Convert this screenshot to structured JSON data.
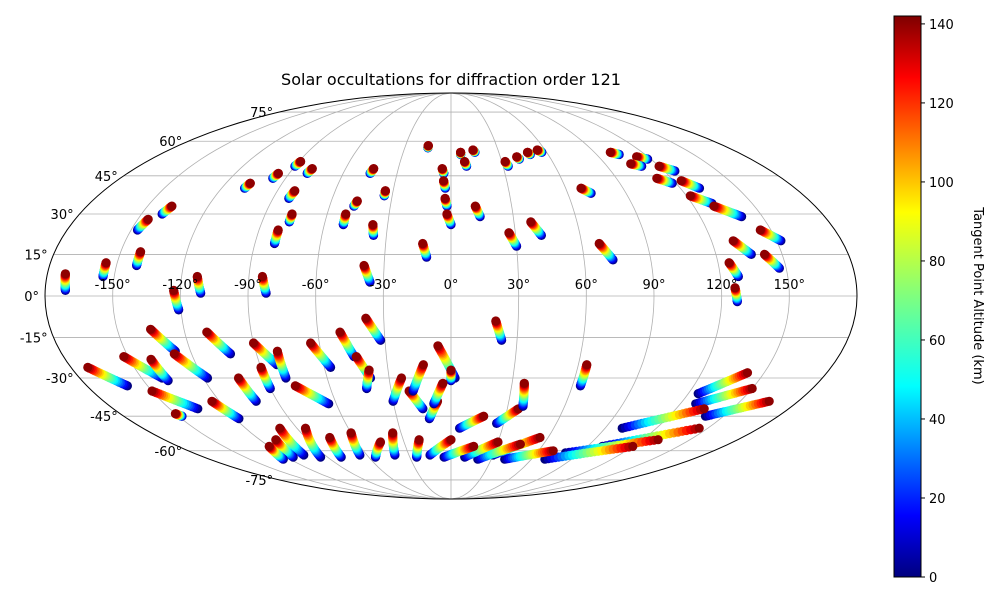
{
  "chart_data": {
    "type": "scatter",
    "projection": "mollweide",
    "title": "Solar occultations for diffraction order 121",
    "grid": true,
    "lon_ticks": [
      -150,
      -120,
      -90,
      -60,
      -30,
      0,
      30,
      60,
      90,
      120,
      150
    ],
    "lon_labels": [
      "-150°",
      "-120°",
      "-90°",
      "-60°",
      "-30°",
      "0°",
      "30°",
      "60°",
      "90°",
      "120°",
      "150°"
    ],
    "lat_ticks": [
      -75,
      -60,
      -45,
      -30,
      -15,
      0,
      15,
      30,
      45,
      60,
      75
    ],
    "lat_labels": [
      "-75°",
      "-60°",
      "-45°",
      "-30°",
      "-15°",
      "0°",
      "15°",
      "30°",
      "45°",
      "60°",
      "75°"
    ],
    "colorbar": {
      "label": "Tangent Point Altitude (km)",
      "colormap": "jet",
      "range": [
        0,
        142
      ],
      "ticks": [
        0,
        20,
        40,
        60,
        80,
        100,
        120,
        140
      ],
      "tick_labels": [
        "0",
        "20",
        "40",
        "60",
        "80",
        "100",
        "120",
        "140"
      ]
    },
    "tracks": [
      {
        "lon_top": -172,
        "lat_top": 8,
        "lon_bottom": -171,
        "lat_bottom": 2
      },
      {
        "lon_top": -155,
        "lat_top": 12,
        "lon_bottom": -155,
        "lat_bottom": 7
      },
      {
        "lon_top": -145,
        "lat_top": 28,
        "lon_bottom": -147,
        "lat_bottom": 24
      },
      {
        "lon_top": -138,
        "lat_top": 33,
        "lon_bottom": -140,
        "lat_bottom": 30
      },
      {
        "lon_top": -141,
        "lat_top": 16,
        "lon_bottom": -141,
        "lat_bottom": 11
      },
      {
        "lon_top": -123,
        "lat_top": 2,
        "lon_bottom": -121,
        "lat_bottom": -5
      },
      {
        "lon_top": -113,
        "lat_top": 7,
        "lon_bottom": -111,
        "lat_bottom": 1
      },
      {
        "lon_top": -107,
        "lat_top": 42,
        "lon_bottom": -108,
        "lat_bottom": 40
      },
      {
        "lon_top": -96,
        "lat_top": 46,
        "lon_bottom": -97,
        "lat_bottom": 44
      },
      {
        "lon_top": -89,
        "lat_top": 51,
        "lon_bottom": -90,
        "lat_bottom": 49
      },
      {
        "lon_top": -79,
        "lat_top": 48,
        "lon_bottom": -80,
        "lat_bottom": 46
      },
      {
        "lon_top": -81,
        "lat_top": 39,
        "lon_bottom": -82,
        "lat_bottom": 36
      },
      {
        "lon_top": -77,
        "lat_top": 30,
        "lon_bottom": -77,
        "lat_bottom": 27
      },
      {
        "lon_top": -81,
        "lat_top": 24,
        "lon_bottom": -81,
        "lat_bottom": 19
      },
      {
        "lon_top": -84,
        "lat_top": 7,
        "lon_bottom": -82,
        "lat_bottom": 1
      },
      {
        "lon_top": -44,
        "lat_top": 48,
        "lon_bottom": -45,
        "lat_bottom": 46
      },
      {
        "lon_top": -47,
        "lat_top": 35,
        "lon_bottom": -48,
        "lat_bottom": 33
      },
      {
        "lon_top": -51,
        "lat_top": 30,
        "lon_bottom": -51,
        "lat_bottom": 26
      },
      {
        "lon_top": -34,
        "lat_top": 39,
        "lon_bottom": -34,
        "lat_bottom": 37
      },
      {
        "lon_top": -37,
        "lat_top": 26,
        "lon_bottom": -36,
        "lat_bottom": 22
      },
      {
        "lon_top": -39,
        "lat_top": 11,
        "lon_bottom": -36,
        "lat_bottom": 5
      },
      {
        "lon_top": -13,
        "lat_top": 19,
        "lon_bottom": -11,
        "lat_bottom": 14
      },
      {
        "lon_top": -15,
        "lat_top": 58,
        "lon_bottom": -15,
        "lat_bottom": 57
      },
      {
        "lon_top": -5,
        "lat_top": 48,
        "lon_bottom": -4,
        "lat_bottom": 46
      },
      {
        "lon_top": -4,
        "lat_top": 43,
        "lon_bottom": -3,
        "lat_bottom": 40
      },
      {
        "lon_top": -3,
        "lat_top": 36,
        "lon_bottom": -2,
        "lat_bottom": 33
      },
      {
        "lon_top": -2,
        "lat_top": 30,
        "lon_bottom": 0,
        "lat_bottom": 26
      },
      {
        "lon_top": 6,
        "lat_top": 55,
        "lon_bottom": 6,
        "lat_bottom": 54
      },
      {
        "lon_top": 8,
        "lat_top": 51,
        "lon_bottom": 9,
        "lat_bottom": 49
      },
      {
        "lon_top": 14,
        "lat_top": 56,
        "lon_bottom": 15,
        "lat_bottom": 55
      },
      {
        "lon_top": 12,
        "lat_top": 33,
        "lon_bottom": 14,
        "lat_bottom": 29
      },
      {
        "lon_top": 32,
        "lat_top": 51,
        "lon_bottom": 33,
        "lat_bottom": 49
      },
      {
        "lon_top": 40,
        "lat_top": 53,
        "lon_bottom": 41,
        "lat_bottom": 52
      },
      {
        "lon_top": 48,
        "lat_top": 55,
        "lon_bottom": 49,
        "lat_bottom": 54
      },
      {
        "lon_top": 55,
        "lat_top": 56,
        "lon_bottom": 57,
        "lat_bottom": 55
      },
      {
        "lon_top": 27,
        "lat_top": 23,
        "lon_bottom": 30,
        "lat_bottom": 18
      },
      {
        "lon_top": 38,
        "lat_top": 27,
        "lon_bottom": 42,
        "lat_bottom": 22
      },
      {
        "lon_top": 68,
        "lat_top": 40,
        "lon_bottom": 72,
        "lat_bottom": 38
      },
      {
        "lon_top": 68,
        "lat_top": 19,
        "lon_bottom": 73,
        "lat_bottom": 13
      },
      {
        "lon_top": 20,
        "lat_top": -9,
        "lon_bottom": 23,
        "lat_bottom": -16
      },
      {
        "lon_top": 100,
        "lat_top": 55,
        "lon_bottom": 104,
        "lat_bottom": 54
      },
      {
        "lon_top": 113,
        "lat_top": 53,
        "lon_bottom": 118,
        "lat_bottom": 52
      },
      {
        "lon_top": 105,
        "lat_top": 50,
        "lon_bottom": 110,
        "lat_bottom": 49
      },
      {
        "lon_top": 120,
        "lat_top": 49,
        "lon_bottom": 126,
        "lat_bottom": 47
      },
      {
        "lon_top": 112,
        "lat_top": 44,
        "lon_bottom": 118,
        "lat_bottom": 42
      },
      {
        "lon_top": 124,
        "lat_top": 43,
        "lon_bottom": 130,
        "lat_bottom": 40
      },
      {
        "lon_top": 122,
        "lat_top": 37,
        "lon_bottom": 130,
        "lat_bottom": 34
      },
      {
        "lon_top": 130,
        "lat_top": 33,
        "lon_bottom": 140,
        "lat_bottom": 29
      },
      {
        "lon_top": 145,
        "lat_top": 24,
        "lon_bottom": 152,
        "lat_bottom": 20
      },
      {
        "lon_top": 130,
        "lat_top": 20,
        "lon_bottom": 136,
        "lat_bottom": 15
      },
      {
        "lon_top": 142,
        "lat_top": 15,
        "lon_bottom": 147,
        "lat_bottom": 10
      },
      {
        "lon_top": 125,
        "lat_top": 12,
        "lon_bottom": 128,
        "lat_bottom": 7
      },
      {
        "lon_top": 126,
        "lat_top": 3,
        "lon_bottom": 127,
        "lat_bottom": -2
      },
      {
        "lon_top": -172,
        "lat_top": -26,
        "lon_bottom": -160,
        "lat_bottom": -33
      },
      {
        "lon_top": -152,
        "lat_top": -22,
        "lon_bottom": -140,
        "lat_bottom": -30
      },
      {
        "lon_top": -150,
        "lat_top": -35,
        "lon_bottom": -135,
        "lat_bottom": -42
      },
      {
        "lon_top": -140,
        "lat_top": -23,
        "lon_bottom": -138,
        "lat_bottom": -31
      },
      {
        "lon_top": -135,
        "lat_top": -12,
        "lon_bottom": -127,
        "lat_bottom": -20
      },
      {
        "lon_top": -128,
        "lat_top": -21,
        "lon_bottom": -118,
        "lat_bottom": -30
      },
      {
        "lon_top": -124,
        "lat_top": -39,
        "lon_bottom": -118,
        "lat_bottom": -46
      },
      {
        "lon_top": -110,
        "lat_top": -13,
        "lon_bottom": -102,
        "lat_bottom": -21
      },
      {
        "lon_top": -103,
        "lat_top": -30,
        "lon_bottom": -101,
        "lat_bottom": -39
      },
      {
        "lon_top": -90,
        "lat_top": -26,
        "lon_bottom": -90,
        "lat_bottom": -34
      },
      {
        "lon_top": -90,
        "lat_top": -17,
        "lon_bottom": -82,
        "lat_bottom": -25
      },
      {
        "lon_top": -80,
        "lat_top": -20,
        "lon_bottom": -80,
        "lat_bottom": -30
      },
      {
        "lon_top": -77,
        "lat_top": -33,
        "lon_bottom": -64,
        "lat_bottom": -40
      },
      {
        "lon_top": -64,
        "lat_top": -17,
        "lon_bottom": -57,
        "lat_bottom": -26
      },
      {
        "lon_top": -50,
        "lat_top": -13,
        "lon_bottom": -45,
        "lat_bottom": -22
      },
      {
        "lon_top": -44,
        "lat_top": -22,
        "lon_bottom": -39,
        "lat_bottom": -30
      },
      {
        "lon_top": -39,
        "lat_top": -27,
        "lon_bottom": -42,
        "lat_bottom": -34
      },
      {
        "lon_top": -38,
        "lat_top": -8,
        "lon_bottom": -32,
        "lat_bottom": -16
      },
      {
        "lon_top": -24,
        "lat_top": -30,
        "lon_bottom": -30,
        "lat_bottom": -39
      },
      {
        "lon_top": -21,
        "lat_top": -35,
        "lon_bottom": -15,
        "lat_bottom": -42
      },
      {
        "lon_top": -13,
        "lat_top": -25,
        "lon_bottom": -19,
        "lat_bottom": -35
      },
      {
        "lon_top": -7,
        "lat_top": -39,
        "lon_bottom": -12,
        "lat_bottom": -46
      },
      {
        "lon_top": -6,
        "lat_top": -18,
        "lon_bottom": 2,
        "lat_bottom": -30
      },
      {
        "lon_top": 0,
        "lat_top": -27,
        "lon_bottom": 0,
        "lat_bottom": -31
      },
      {
        "lon_top": -4,
        "lat_top": -32,
        "lon_bottom": -9,
        "lat_bottom": -40
      },
      {
        "lon_top": 18,
        "lat_top": -45,
        "lon_bottom": 5,
        "lat_bottom": -50
      },
      {
        "lon_top": 36,
        "lat_top": -42,
        "lon_bottom": 26,
        "lat_bottom": -48
      },
      {
        "lon_top": 36,
        "lat_top": -32,
        "lon_bottom": 38,
        "lat_bottom": -41
      },
      {
        "lon_top": 64,
        "lat_top": -25,
        "lon_bottom": 64,
        "lat_bottom": -33
      },
      {
        "lon_top": 142,
        "lat_top": -28,
        "lon_bottom": 125,
        "lat_bottom": -36
      },
      {
        "lon_top": 150,
        "lat_top": -34,
        "lon_bottom": 128,
        "lat_bottom": -40
      },
      {
        "lon_top": 165,
        "lat_top": -39,
        "lon_bottom": 140,
        "lat_bottom": -45
      },
      {
        "lon_top": 135,
        "lat_top": -42,
        "lon_bottom": 100,
        "lat_bottom": -50
      },
      {
        "lon_top": 145,
        "lat_top": -50,
        "lon_bottom": 100,
        "lat_bottom": -58
      },
      {
        "lon_top": 130,
        "lat_top": -55,
        "lon_bottom": 80,
        "lat_bottom": -61
      },
      {
        "lon_top": 120,
        "lat_top": -58,
        "lon_bottom": 70,
        "lat_bottom": -64
      },
      {
        "lon_top": 70,
        "lat_top": -60,
        "lon_bottom": 40,
        "lat_bottom": -64
      },
      {
        "lon_top": 55,
        "lat_top": -54,
        "lon_bottom": 30,
        "lat_bottom": -62
      },
      {
        "lon_top": 45,
        "lat_top": -57,
        "lon_bottom": 20,
        "lat_bottom": -64
      },
      {
        "lon_top": 30,
        "lat_top": -56,
        "lon_bottom": 10,
        "lat_bottom": -63
      },
      {
        "lon_top": 15,
        "lat_top": -58,
        "lon_bottom": -5,
        "lat_bottom": -63
      },
      {
        "lon_top": 0,
        "lat_top": -55,
        "lon_bottom": -15,
        "lat_bottom": -62
      },
      {
        "lon_top": -20,
        "lat_top": -55,
        "lon_bottom": -25,
        "lat_bottom": -63
      },
      {
        "lon_top": -35,
        "lat_top": -52,
        "lon_bottom": -40,
        "lat_bottom": -62
      },
      {
        "lon_top": -45,
        "lat_top": -56,
        "lon_bottom": -55,
        "lat_bottom": -63
      },
      {
        "lon_top": -60,
        "lat_top": -52,
        "lon_bottom": -65,
        "lat_bottom": -62
      },
      {
        "lon_top": -75,
        "lat_top": -54,
        "lon_bottom": -80,
        "lat_bottom": -63
      },
      {
        "lon_top": -85,
        "lat_top": -50,
        "lon_bottom": -95,
        "lat_bottom": -63
      },
      {
        "lon_top": -100,
        "lat_top": -50,
        "lon_bottom": -105,
        "lat_bottom": -62
      },
      {
        "lon_top": -110,
        "lat_top": -55,
        "lon_bottom": -115,
        "lat_bottom": -63
      },
      {
        "lon_top": -120,
        "lat_top": -58,
        "lon_bottom": -125,
        "lat_bottom": -64
      },
      {
        "lon_top": -150,
        "lat_top": -44,
        "lon_bottom": -148,
        "lat_bottom": -45
      }
    ]
  }
}
